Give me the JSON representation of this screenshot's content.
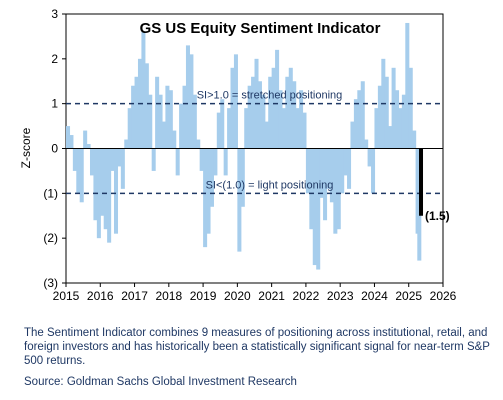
{
  "chart_data": {
    "type": "area",
    "title": "GS US Equity Sentiment Indicator",
    "ylabel": "Z-score",
    "ylim": [
      -3,
      3
    ],
    "xlim": [
      2015,
      2026
    ],
    "y_ticks": [
      "3",
      "2",
      "1",
      "0",
      "(1)",
      "(2)",
      "(3)"
    ],
    "x_ticks": [
      "2015",
      "2016",
      "2017",
      "2018",
      "2019",
      "2020",
      "2021",
      "2022",
      "2023",
      "2024",
      "2025",
      "2026"
    ],
    "series": [
      {
        "color": "#a6cdec",
        "x": [
          2015.0,
          2015.1,
          2015.2,
          2015.3,
          2015.4,
          2015.5,
          2015.6,
          2015.7,
          2015.8,
          2015.9,
          2016.0,
          2016.1,
          2016.2,
          2016.3,
          2016.4,
          2016.5,
          2016.6,
          2016.7,
          2016.8,
          2016.9,
          2017.0,
          2017.1,
          2017.2,
          2017.3,
          2017.4,
          2017.5,
          2017.6,
          2017.7,
          2017.8,
          2017.9,
          2018.0,
          2018.1,
          2018.2,
          2018.3,
          2018.4,
          2018.5,
          2018.6,
          2018.7,
          2018.8,
          2018.9,
          2019.0,
          2019.1,
          2019.2,
          2019.3,
          2019.4,
          2019.5,
          2019.6,
          2019.7,
          2019.8,
          2019.9,
          2020.0,
          2020.1,
          2020.2,
          2020.3,
          2020.4,
          2020.5,
          2020.6,
          2020.7,
          2020.8,
          2020.9,
          2021.0,
          2021.1,
          2021.2,
          2021.3,
          2021.4,
          2021.5,
          2021.6,
          2021.7,
          2021.8,
          2021.9,
          2022.0,
          2022.1,
          2022.2,
          2022.3,
          2022.4,
          2022.5,
          2022.6,
          2022.7,
          2022.8,
          2022.9,
          2023.0,
          2023.1,
          2023.2,
          2023.3,
          2023.4,
          2023.5,
          2023.6,
          2023.7,
          2023.8,
          2023.9,
          2024.0,
          2024.1,
          2024.2,
          2024.3,
          2024.4,
          2024.5,
          2024.6,
          2024.7,
          2024.8,
          2024.9,
          2025.0,
          2025.1,
          2025.2,
          2025.25
        ],
        "y": [
          0.5,
          0.3,
          -0.5,
          -1.0,
          -1.2,
          0.4,
          0.1,
          -0.6,
          -1.6,
          -2.0,
          -1.5,
          -1.8,
          -2.1,
          -0.5,
          -1.9,
          -0.4,
          -0.9,
          0.2,
          0.9,
          1.4,
          1.6,
          2.0,
          2.6,
          1.9,
          1.2,
          -0.5,
          1.6,
          1.2,
          0.6,
          1.4,
          1.3,
          0.4,
          -0.6,
          1.0,
          1.4,
          2.3,
          2.1,
          1.2,
          0.2,
          -0.5,
          -2.2,
          -1.9,
          -1.3,
          -0.6,
          0.8,
          1.1,
          -0.6,
          0.9,
          1.8,
          2.1,
          -2.3,
          -1.3,
          0.9,
          1.4,
          1.6,
          2.0,
          1.5,
          1.2,
          0.6,
          1.6,
          1.8,
          2.2,
          1.3,
          0.9,
          1.6,
          1.8,
          1.5,
          0.9,
          1.3,
          0.8,
          -1.0,
          -1.8,
          -2.6,
          -2.7,
          -1.1,
          -1.6,
          -0.9,
          -1.2,
          -1.9,
          -1.8,
          -1.0,
          -0.6,
          -0.9,
          0.6,
          1.1,
          1.3,
          1.5,
          0.2,
          -0.4,
          -1.0,
          0.9,
          1.4,
          2.0,
          1.6,
          0.5,
          1.8,
          1.3,
          0.9,
          1.2,
          2.8,
          1.8,
          0.4,
          -1.9,
          -2.5
        ]
      }
    ],
    "highlight": {
      "x": 2025.3,
      "y": -1.5,
      "label": "(1.5)",
      "color": "#000000"
    },
    "reference_lines": [
      {
        "y": 1.0,
        "label": "SI>1.0 = stretched positioning",
        "style": "dashed",
        "color": "#1f3864"
      },
      {
        "y": -1.0,
        "label": "SI<(1.0) = light positioning",
        "style": "dashed",
        "color": "#1f3864"
      }
    ],
    "grid": false
  },
  "caption": "The Sentiment Indicator combines 9 measures of positioning across institutional, retail, and foreign investors and has historically been a statistically significant signal for near-term S&P 500 returns.",
  "source": "Source: Goldman Sachs Global Investment Research"
}
